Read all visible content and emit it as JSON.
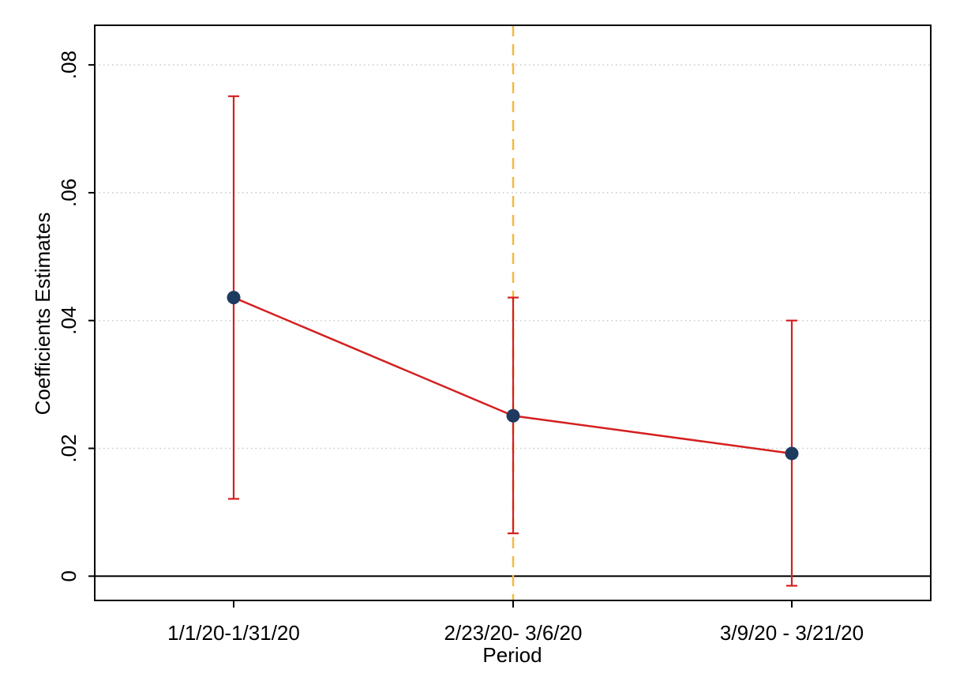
{
  "chart_data": {
    "type": "line",
    "title": "",
    "xlabel": "Period",
    "ylabel": "Coefficients Estimates",
    "categories": [
      "1/1/20-1/31/20",
      "2/23/20- 3/6/20",
      "3/9/20 - 3/21/20"
    ],
    "series": [
      {
        "values": [
          0.0436,
          0.0251,
          0.0192
        ],
        "ci_lower": [
          0.0121,
          0.0067,
          -0.0015
        ],
        "ci_upper": [
          0.0751,
          0.0436,
          0.04
        ]
      }
    ],
    "yticks": [
      0,
      0.02,
      0.04,
      0.06,
      0.08
    ],
    "ytick_labels": [
      "0",
      ".02",
      ".04",
      ".06",
      ".08"
    ],
    "ylim": [
      -0.0038,
      0.0862
    ],
    "grid": "horizontal-dotted",
    "reference_hline": 0,
    "reference_vline_category_index": 1,
    "colors": {
      "line": "#d42020",
      "errorbar": "#d42020",
      "marker": "#1f3a5f",
      "vline": "#f4b942",
      "hline": "#000000",
      "grid": "#c8c8c8",
      "axis": "#000000"
    }
  }
}
